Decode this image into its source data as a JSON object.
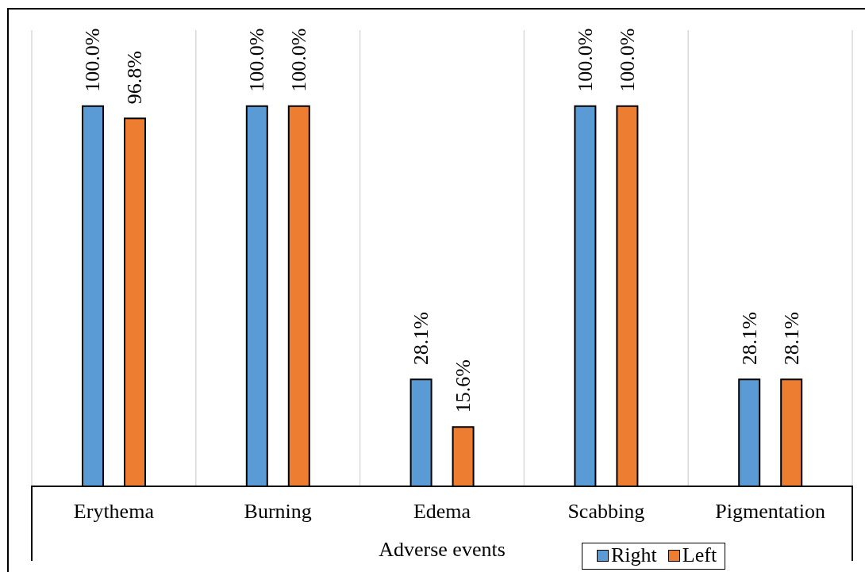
{
  "chart_data": {
    "type": "bar",
    "xlabel": "Adverse events",
    "categories": [
      "Erythema",
      "Burning",
      "Edema",
      "Scabbing",
      "Pigmentation"
    ],
    "series": [
      {
        "name": "Right",
        "color": "#5b9bd5",
        "values": [
          100,
          100,
          28.1,
          100,
          28.1
        ],
        "value_labels": [
          "100.0%",
          "100.0%",
          "28.1%",
          "100.0%",
          "28.1%"
        ]
      },
      {
        "name": "Left",
        "color": "#ed7d31",
        "values": [
          96.8,
          100,
          15.6,
          100,
          28.1
        ],
        "value_labels": [
          "96.8%",
          "100.0%",
          "15.6%",
          "100.0%",
          "28.1%"
        ]
      }
    ],
    "grid": "x",
    "legend": "bottom",
    "tick_labels": "x"
  }
}
